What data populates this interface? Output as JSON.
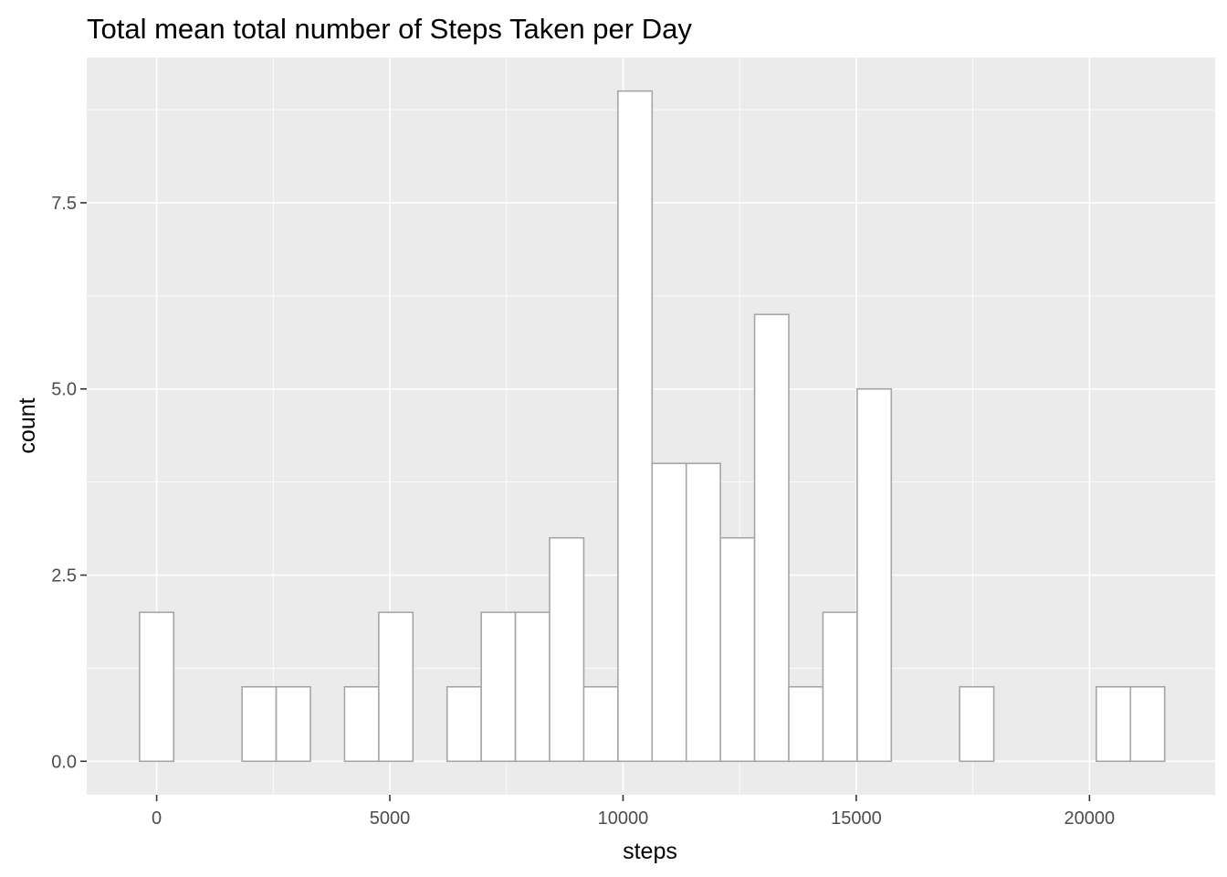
{
  "chart_data": {
    "type": "bar",
    "title": "Total mean total number of Steps Taken per Day",
    "xlabel": "steps",
    "ylabel": "count",
    "xlim": [
      -1499,
      22694
    ],
    "ylim": [
      -0.45,
      9.45
    ],
    "x_ticks": [
      0,
      5000,
      10000,
      15000,
      20000
    ],
    "x_tick_labels": [
      "0",
      "5000",
      "10000",
      "15000",
      "20000"
    ],
    "y_ticks": [
      0,
      2.5,
      5,
      7.5
    ],
    "y_tick_labels": [
      "0.0",
      "2.5",
      "5.0",
      "7.5"
    ],
    "grid": true,
    "bin_width": 732.6,
    "bin_centers": [
      0,
      732.6,
      1465.2,
      2197.8,
      2930.4,
      3663,
      4395.6,
      5128.2,
      5860.8,
      6593.4,
      7326,
      8058.6,
      8791.2,
      9523.8,
      10256.4,
      10989,
      11721.6,
      12454.2,
      13186.8,
      13919.4,
      14652,
      15384.6,
      16117.2,
      16849.8,
      17582.4,
      18315,
      19047.6,
      19780.2,
      20512.8,
      21245.4
    ],
    "values": [
      2,
      0,
      0,
      1,
      1,
      0,
      1,
      2,
      0,
      1,
      2,
      2,
      3,
      1,
      9,
      4,
      4,
      3,
      6,
      1,
      2,
      5,
      0,
      0,
      1,
      0,
      0,
      0,
      1,
      1
    ]
  }
}
